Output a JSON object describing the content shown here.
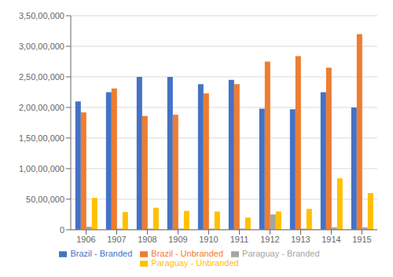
{
  "chart_data": {
    "type": "bar",
    "categories": [
      "1906",
      "1907",
      "1908",
      "1909",
      "1910",
      "1911",
      "1912",
      "1913",
      "1914",
      "1915"
    ],
    "series": [
      {
        "name": "Brazil - Branded",
        "color": "#4472C4",
        "values": [
          21000000,
          22500000,
          25000000,
          25000000,
          23800000,
          24500000,
          19800000,
          19700000,
          22500000,
          20000000
        ]
      },
      {
        "name": "Brazil - Unbranded",
        "color": "#ED7D31",
        "values": [
          19200000,
          23100000,
          18600000,
          18800000,
          22300000,
          23800000,
          27500000,
          28400000,
          26500000,
          32000000
        ]
      },
      {
        "name": "Paraguay - Branded",
        "color": "#A5A5A5",
        "values": [
          500000,
          200000,
          200000,
          200000,
          200000,
          200000,
          2500000,
          200000,
          400000,
          400000
        ]
      },
      {
        "name": "Paraguay - Unbranded",
        "color": "#FFC000",
        "values": [
          5200000,
          2900000,
          3600000,
          3100000,
          3000000,
          2000000,
          3000000,
          3400000,
          8400000,
          6000000
        ]
      }
    ],
    "ylim": [
      0,
      35000000
    ],
    "yticks": [
      0,
      {
        "value": 5000000,
        "label": "50,00,000"
      },
      {
        "value": 10000000,
        "label": "1,00,00,000"
      },
      {
        "value": 15000000,
        "label": "1,50,00,000"
      },
      {
        "value": 20000000,
        "label": "2,00,00,000"
      },
      {
        "value": 25000000,
        "label": "2,50,00,000"
      },
      {
        "value": 30000000,
        "label": "3,00,00,000"
      },
      {
        "value": 35000000,
        "label": "3,50,00,000"
      }
    ],
    "grid": true,
    "legend": "bottom"
  }
}
